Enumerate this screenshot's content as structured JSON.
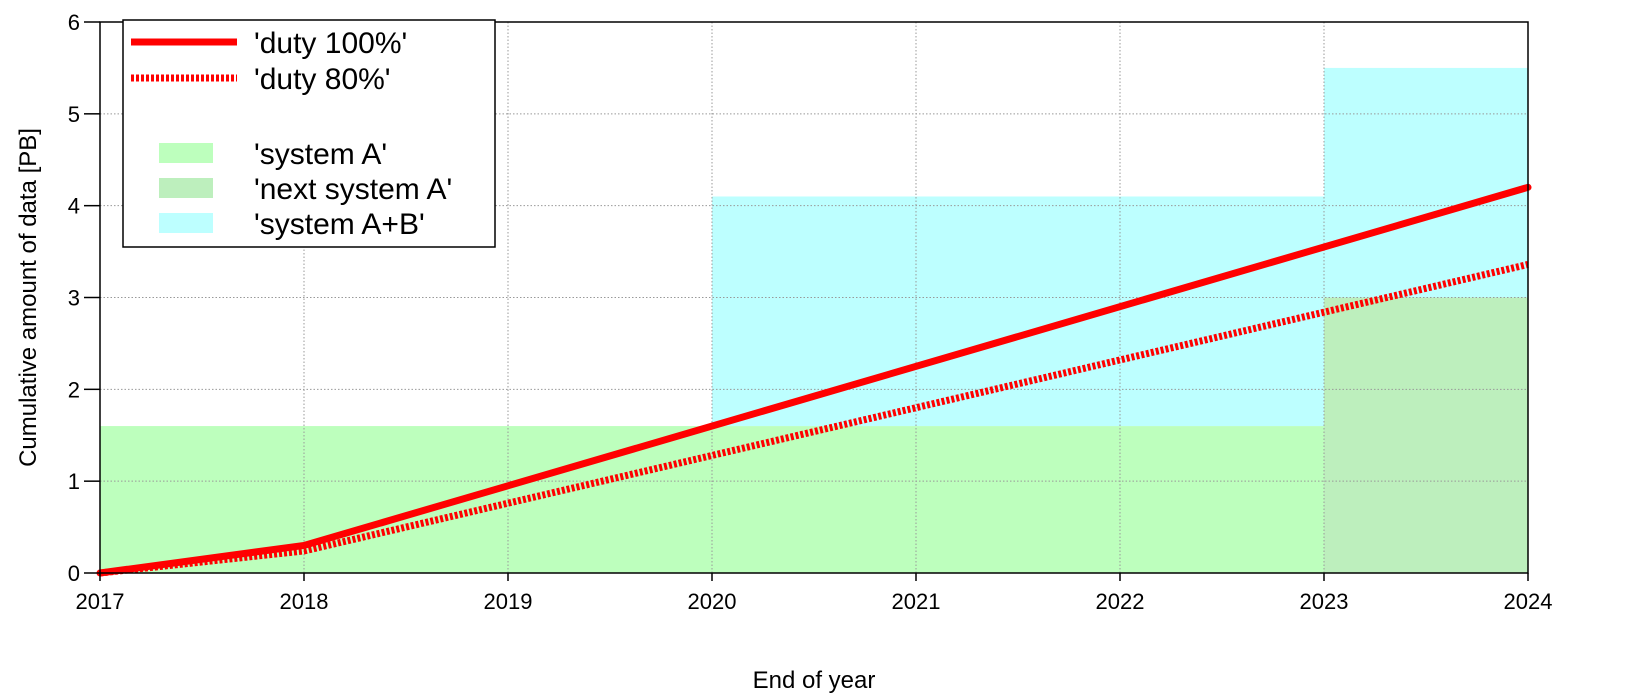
{
  "chart_data": {
    "type": "line",
    "title": "",
    "xlabel": "End of year",
    "ylabel": "Cumulative amount of data [PB]",
    "xlim": [
      2017,
      2024
    ],
    "ylim": [
      0,
      6
    ],
    "x_ticks": [
      2017,
      2018,
      2019,
      2020,
      2021,
      2022,
      2023,
      2024
    ],
    "x_tick_labels": [
      "2017",
      "2018",
      "2019",
      "2020",
      "2021",
      "2022",
      "2023",
      "2024"
    ],
    "y_ticks": [
      0,
      1,
      2,
      3,
      4,
      5,
      6
    ],
    "y_tick_labels": [
      "0",
      "1",
      "2",
      "3",
      "4",
      "5",
      "6"
    ],
    "grid": true,
    "legend_position": "top-left",
    "series": [
      {
        "name": "'duty 100%'",
        "style": "solid",
        "color": "#ff0000",
        "x": [
          2017,
          2018,
          2024
        ],
        "y": [
          0,
          0.3,
          4.2
        ]
      },
      {
        "name": "'duty 80%'",
        "style": "dotted",
        "color": "#ff0000",
        "x": [
          2017,
          2018,
          2024
        ],
        "y": [
          0,
          0.24,
          3.36
        ]
      }
    ],
    "areas": [
      {
        "name": "'system A'",
        "color": "#bdffbd",
        "x_range": [
          2017,
          2023
        ],
        "y_range": [
          0,
          1.6
        ]
      },
      {
        "name": "'next system A'",
        "color": "#bdefbd",
        "x_range": [
          2023,
          2024
        ],
        "y_range": [
          0,
          3
        ]
      },
      {
        "name": "'system A+B'",
        "color": "#bdffff",
        "segments": [
          {
            "x_range": [
              2020,
              2023
            ],
            "y_range": [
              1.6,
              4.1
            ]
          },
          {
            "x_range": [
              2023,
              2024
            ],
            "y_range": [
              3,
              5.5
            ]
          }
        ]
      }
    ]
  }
}
